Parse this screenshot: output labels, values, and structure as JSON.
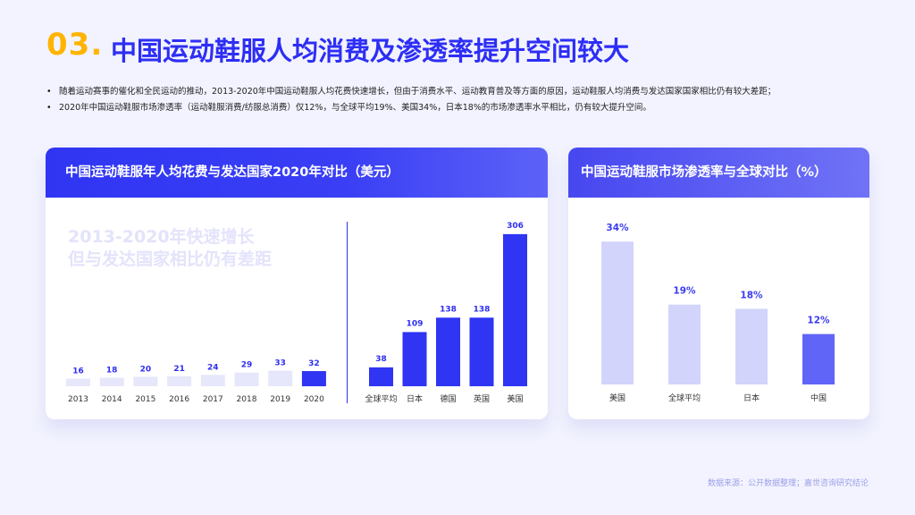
{
  "header": {
    "number": "03.",
    "title": "中国运动鞋服人均消费及渗透率提升空间较大"
  },
  "bullets": [
    "随着运动赛事的催化和全民运动的推动，2013-2020年中国运动鞋服人均花费快速增长，但由于消费水平、运动教育普及等方面的原因，运动鞋服人均消费与发达国家国家相比仍有较大差距；",
    "2020年中国运动鞋服市场渗透率（运动鞋服消费/纺服总消费）仅12%，与全球平均19%、美国34%，日本18%的市场渗透率水平相比，仍有较大提升空间。"
  ],
  "card1": {
    "title": "中国运动鞋服年人均花费与发达国家2020年对比（美元）",
    "watermark_line1": "2013-2020年快速增长",
    "watermark_line2": "但与发达国家相比仍有差距"
  },
  "card2": {
    "title": "中国运动鞋服市场渗透率与全球对比（%）"
  },
  "source": "数据来源：公开数据整理；嘉世咨询研究结论",
  "colors": {
    "primary": "#2f35f2",
    "title_accent": "#ffb400",
    "light_bar": "#e6e7fb",
    "lavender_bar": "#d3d4fb",
    "china_bar": "#6165f7"
  },
  "chart_data": [
    {
      "type": "bar",
      "title": "中国运动鞋服年人均花费与发达国家2020年对比（美元）",
      "categories": [
        "2013",
        "2014",
        "2015",
        "2016",
        "2017",
        "2018",
        "2019",
        "2020"
      ],
      "values": [
        16,
        18,
        20,
        21,
        24,
        29,
        33,
        32
      ],
      "highlight": "2020"
    },
    {
      "type": "bar",
      "categories": [
        "全球平均",
        "日本",
        "德国",
        "英国",
        "美国"
      ],
      "values": [
        38,
        109,
        138,
        138,
        306
      ]
    },
    {
      "type": "bar",
      "title": "中国运动鞋服市场渗透率与全球对比（%）",
      "categories": [
        "美国",
        "全球平均",
        "日本",
        "中国"
      ],
      "values": [
        34,
        19,
        18,
        12
      ],
      "value_labels": [
        "34%",
        "19%",
        "18%",
        "12%"
      ],
      "highlight": "中国"
    }
  ]
}
